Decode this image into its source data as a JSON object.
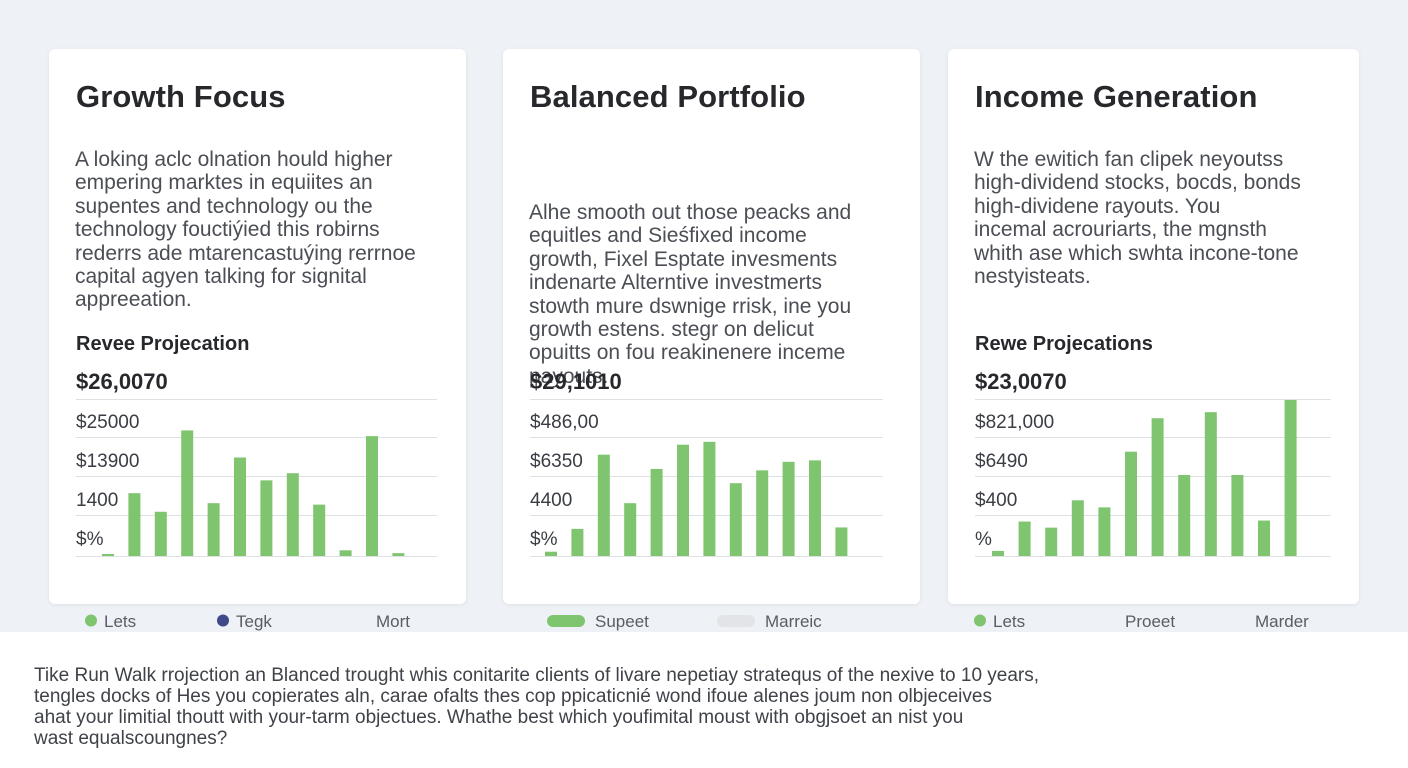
{
  "colors": {
    "page_bg": "#eef1f5",
    "card_bg": "#ffffff",
    "bar_green": "#7fc46e",
    "legend_navy": "#3e4a8a",
    "legend_gray": "#e2e4e7",
    "grid": "#dde0e4"
  },
  "cards": [
    {
      "title": "Growth Focus",
      "description": [
        "A loking aclc olnation hould higher",
        "empering marktes in equiites an",
        "supentes and technology ou the",
        "technology fouctiýied this robirns",
        "rederrs ade mtarencastuýing rerrnoe",
        "capital agyen talking for signital",
        "appreeation."
      ],
      "projection_label": "Revee Projecation",
      "projection_total": "$26,0070"
    },
    {
      "title": "Balanced Portfolio",
      "description": [
        "Alhe smooth out those peacks and",
        "equitles and Sieśfixed income",
        "growth, Fixel Esptate invesments",
        "indenarte Alterntive investmerts",
        "stowth mure dswnige rrisk, ine you",
        "growth estens. stegr on delicut",
        "opuitts on fou reakinenere inceme",
        "payouts."
      ],
      "projection_label": "",
      "projection_total": "$29,1010"
    },
    {
      "title": "Income Generation",
      "description": [
        "W the ewitich fan clipek neyoutss",
        "high-dividend stocks, bocds, bonds",
        "high-dividene rayouts. You",
        "incemal acrouriarts, the mgnsth",
        "whith ase which swhta incone-tone",
        "nestyisteats."
      ],
      "projection_label": "Rewe Projecations",
      "projection_total": "$23,0070"
    }
  ],
  "chart_data": [
    {
      "type": "bar",
      "title": "Revee Projecation",
      "tick_labels": [
        "$25000",
        "$13900",
        "1400",
        "$%"
      ],
      "values": [
        1,
        44,
        31,
        88,
        37,
        69,
        53,
        58,
        36,
        4,
        84,
        2
      ],
      "ylim": [
        0,
        110
      ],
      "legend": [
        {
          "label": "Lets",
          "color": "#7fc46e",
          "marker": "dot"
        },
        {
          "label": "Tegk",
          "color": "#3e4a8a",
          "marker": "dot"
        },
        {
          "label": "Mort",
          "color": "",
          "marker": "none"
        }
      ],
      "grid": true
    },
    {
      "type": "bar",
      "title": "",
      "tick_labels": [
        "$486,00",
        "$6350",
        "4400",
        "$%"
      ],
      "values": [
        3,
        19,
        71,
        37,
        61,
        78,
        80,
        51,
        60,
        66,
        67,
        20
      ],
      "ylim": [
        0,
        110
      ],
      "legend": [
        {
          "label": "Supeet",
          "color": "#7fc46e",
          "marker": "pill"
        },
        {
          "label": "Marreic",
          "color": "#e2e4e7",
          "marker": "pill"
        }
      ],
      "grid": true
    },
    {
      "type": "bar",
      "title": "Rewe Projecations",
      "tick_labels": [
        "$821,000",
        "$6490",
        "$400",
        "%"
      ],
      "values": [
        5,
        34,
        28,
        55,
        48,
        103,
        136,
        80,
        142,
        80,
        35,
        154
      ],
      "ylim": [
        0,
        155
      ],
      "legend": [
        {
          "label": "Lets",
          "color": "#7fc46e",
          "marker": "dot"
        },
        {
          "label": "Proeet",
          "color": "",
          "marker": "none"
        },
        {
          "label": "Marder",
          "color": "",
          "marker": "none"
        }
      ],
      "grid": true
    }
  ],
  "footer": {
    "lines": [
      "Tike Run Walk rrojection an Blanced trought whis conitarite clients of livare nepetiay stratequs of the nexive to 10 years,",
      "tengles docks of Hes you copierates aln, carae ofalts thes cop ppicaticnié wond ifoue alenes joum non olbjeceives",
      "ahat your limitial thoutt with your-tarm objectues. Whathe best which  youfimital moust with obgjsoet an nist you",
      "wast equalscoungnes?"
    ]
  }
}
